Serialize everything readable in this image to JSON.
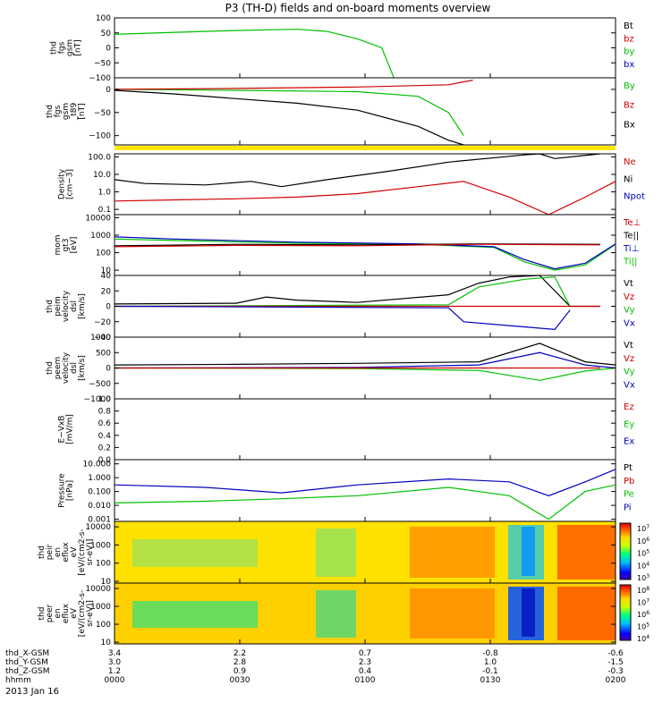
{
  "title": "P3 (TH-D) fields and on-board moments overview",
  "date_label": "2013 Jan 16",
  "time_axis": {
    "row_labels": [
      "thd_X-GSM",
      "thd_Y-GSM",
      "thd_Z-GSM",
      "hhmm"
    ],
    "columns": [
      {
        "time": "0000",
        "x_gsm": "3.4",
        "y_gsm": "3.0",
        "z_gsm": "1.2"
      },
      {
        "time": "0030",
        "x_gsm": "2.2",
        "y_gsm": "2.8",
        "z_gsm": "0.9"
      },
      {
        "time": "0100",
        "x_gsm": "0.7",
        "y_gsm": "2.3",
        "z_gsm": "0.4"
      },
      {
        "time": "0130",
        "x_gsm": "-0.8",
        "y_gsm": "1.0",
        "z_gsm": "-0.1"
      },
      {
        "time": "0200",
        "x_gsm": "-0.6",
        "y_gsm": "-1.5",
        "z_gsm": "-0.3"
      }
    ]
  },
  "chart_data": [
    {
      "type": "line",
      "ylabel": [
        "thd",
        "fgs",
        "gsm",
        "[nT]"
      ],
      "ylim": [
        -100,
        100
      ],
      "yticks": [
        "100",
        "50",
        "0",
        "−50",
        "−100"
      ],
      "yticks_values": [
        100,
        50,
        0,
        -50,
        -100
      ],
      "legend": [
        {
          "name": "Bt",
          "color": "#000000"
        },
        {
          "name": "bz",
          "color": "#d00000"
        },
        {
          "name": "by",
          "color": "#00c000"
        },
        {
          "name": "bx",
          "color": "#0000c0"
        }
      ],
      "series": [
        {
          "name": "by",
          "color": "#00c000",
          "x": [
            0,
            20,
            40,
            60,
            70,
            80,
            88,
            92
          ],
          "y": [
            45,
            52,
            58,
            62,
            55,
            30,
            0,
            -100
          ]
        }
      ]
    },
    {
      "type": "line",
      "ylabel": [
        "thd",
        "fgs",
        "gsm",
        "_t89",
        "[nT]"
      ],
      "ylim": [
        -120,
        25
      ],
      "yticks": [
        "0",
        "−50",
        "−100"
      ],
      "yticks_values": [
        0,
        -50,
        -100
      ],
      "legend": [
        {
          "name": "By",
          "color": "#00c000"
        },
        {
          "name": "Bz",
          "color": "#d00000"
        },
        {
          "name": "Bx",
          "color": "#000000"
        }
      ],
      "series": [
        {
          "name": "Bx",
          "color": "#000000",
          "x": [
            0,
            20,
            40,
            60,
            80,
            100,
            110,
            115
          ],
          "y": [
            -2,
            -10,
            -20,
            -30,
            -45,
            -80,
            -110,
            -120
          ]
        },
        {
          "name": "By",
          "color": "#00c000",
          "x": [
            0,
            40,
            80,
            100,
            110,
            115
          ],
          "y": [
            0,
            -2,
            -5,
            -15,
            -50,
            -100
          ]
        },
        {
          "name": "Bz",
          "color": "#d00000",
          "x": [
            0,
            40,
            80,
            110,
            118
          ],
          "y": [
            0,
            2,
            5,
            10,
            20
          ]
        }
      ]
    },
    {
      "type": "line",
      "ylabel": [
        "Density",
        "[cm−3]"
      ],
      "yscale": "log",
      "ylim": [
        0.05,
        150
      ],
      "yticks": [
        "100.0",
        "10.0",
        "1.0",
        "0.1"
      ],
      "yticks_values": [
        100,
        10,
        1,
        0.1
      ],
      "legend": [
        {
          "name": "Ne",
          "color": "#d00000"
        },
        {
          "name": "Ni",
          "color": "#000000"
        },
        {
          "name": "Npot",
          "color": "#0000c0"
        }
      ],
      "series": [
        {
          "name": "Ni",
          "color": "#000000",
          "x": [
            0,
            10,
            30,
            45,
            55,
            70,
            90,
            110,
            135,
            140,
            145,
            160
          ],
          "y": [
            5,
            3,
            2.5,
            4,
            2,
            5,
            15,
            50,
            130,
            150,
            80,
            150
          ]
        },
        {
          "name": "Ne",
          "color": "#d00000",
          "x": [
            0,
            20,
            40,
            60,
            80,
            100,
            115,
            130,
            143,
            155,
            165
          ],
          "y": [
            0.3,
            0.35,
            0.4,
            0.5,
            0.8,
            2,
            4,
            0.5,
            0.05,
            0.5,
            4
          ]
        }
      ]
    },
    {
      "type": "line",
      "ylabel": [
        "mom",
        "gt3",
        "[eV]"
      ],
      "yscale": "log",
      "ylim": [
        5,
        15000
      ],
      "yticks": [
        "10000",
        "1000",
        "100",
        "10"
      ],
      "yticks_values": [
        10000,
        1000,
        100,
        10
      ],
      "legend": [
        {
          "name": "Te⊥",
          "color": "#d00000"
        },
        {
          "name": "Te||",
          "color": "#000000"
        },
        {
          "name": "Ti⊥",
          "color": "#0000c0"
        },
        {
          "name": "Ti||",
          "color": "#00c000"
        }
      ],
      "series": [
        {
          "name": "Ti||",
          "color": "#00c000",
          "x": [
            0,
            20,
            60,
            100,
            125,
            135,
            145,
            155,
            165
          ],
          "y": [
            600,
            500,
            350,
            300,
            200,
            30,
            10,
            20,
            300
          ]
        },
        {
          "name": "Ti⊥",
          "color": "#0000c0",
          "x": [
            0,
            20,
            60,
            100,
            125,
            135,
            145,
            155,
            165
          ],
          "y": [
            800,
            600,
            400,
            320,
            220,
            40,
            12,
            25,
            320
          ]
        },
        {
          "name": "Te||",
          "color": "#000000",
          "x": [
            0,
            40,
            80,
            120,
            160
          ],
          "y": [
            250,
            300,
            280,
            320,
            300
          ]
        },
        {
          "name": "Te⊥",
          "color": "#d00000",
          "x": [
            0,
            40,
            80,
            120,
            160
          ],
          "y": [
            220,
            260,
            250,
            300,
            280
          ]
        }
      ]
    },
    {
      "type": "line",
      "ylabel": [
        "thd",
        "peim",
        "velocity",
        "dsl",
        "[km/s]"
      ],
      "ylim": [
        -40,
        40
      ],
      "yticks": [
        "40",
        "20",
        "0",
        "−20",
        "−40"
      ],
      "yticks_values": [
        40,
        20,
        0,
        -20,
        -40
      ],
      "legend": [
        {
          "name": "Vt",
          "color": "#000000"
        },
        {
          "name": "Vz",
          "color": "#d00000"
        },
        {
          "name": "Vy",
          "color": "#00c000"
        },
        {
          "name": "Vx",
          "color": "#0000c0"
        }
      ],
      "series": [
        {
          "name": "Vt",
          "color": "#000000",
          "x": [
            0,
            40,
            50,
            60,
            80,
            110,
            120,
            130,
            140,
            150,
            160
          ],
          "y": [
            3,
            4,
            12,
            8,
            5,
            15,
            30,
            38,
            40,
            0,
            0
          ]
        },
        {
          "name": "Vy",
          "color": "#00c000",
          "x": [
            0,
            110,
            120,
            135,
            145,
            150
          ],
          "y": [
            0,
            2,
            25,
            35,
            38,
            0
          ]
        },
        {
          "name": "Vz",
          "color": "#d00000",
          "x": [
            0,
            160
          ],
          "y": [
            0,
            0
          ]
        },
        {
          "name": "Vx",
          "color": "#0000c0",
          "x": [
            0,
            110,
            115,
            130,
            145,
            150
          ],
          "y": [
            0,
            -2,
            -20,
            -25,
            -30,
            -5
          ]
        }
      ]
    },
    {
      "type": "line",
      "ylabel": [
        "thd",
        "peem",
        "velocity",
        "dsl",
        "[km/s]"
      ],
      "ylim": [
        -1000,
        1000
      ],
      "yticks": [
        "1000",
        "500",
        "0",
        "−500",
        "−1000"
      ],
      "yticks_values": [
        1000,
        500,
        0,
        -500,
        -1000
      ],
      "legend": [
        {
          "name": "Vt",
          "color": "#000000"
        },
        {
          "name": "Vz",
          "color": "#d00000"
        },
        {
          "name": "Vy",
          "color": "#00c000"
        },
        {
          "name": "Vx",
          "color": "#0000c0"
        }
      ],
      "series": [
        {
          "name": "Vt",
          "color": "#000000",
          "x": [
            0,
            40,
            80,
            120,
            140,
            155,
            165
          ],
          "y": [
            100,
            120,
            150,
            200,
            800,
            200,
            100
          ]
        },
        {
          "name": "Vx",
          "color": "#0000c0",
          "x": [
            0,
            80,
            120,
            140,
            155,
            165
          ],
          "y": [
            0,
            20,
            100,
            500,
            100,
            0
          ]
        },
        {
          "name": "Vy",
          "color": "#00c000",
          "x": [
            0,
            80,
            120,
            140,
            155,
            165
          ],
          "y": [
            0,
            -20,
            -80,
            -400,
            -100,
            0
          ]
        },
        {
          "name": "Vz",
          "color": "#d00000",
          "x": [
            0,
            160
          ],
          "y": [
            0,
            0
          ]
        }
      ]
    },
    {
      "type": "line",
      "ylabel": [
        "E−VxB",
        "[mV/m]"
      ],
      "ylim": [
        0,
        1
      ],
      "yticks": [
        "1.0",
        "0.8",
        "0.6",
        "0.4",
        "0.2",
        "0.0"
      ],
      "yticks_values": [
        1,
        0.8,
        0.6,
        0.4,
        0.2,
        0
      ],
      "legend": [
        {
          "name": "Ez",
          "color": "#d00000"
        },
        {
          "name": "Ey",
          "color": "#00c000"
        },
        {
          "name": "Ex",
          "color": "#0000c0"
        }
      ],
      "series": []
    },
    {
      "type": "line",
      "ylabel": [
        "Pressure",
        "[nPa]"
      ],
      "yscale": "log",
      "ylim": [
        0.0007,
        20
      ],
      "yticks": [
        "10.000",
        "1.000",
        "0.100",
        "0.010",
        "0.001"
      ],
      "yticks_values": [
        10,
        1,
        0.1,
        0.01,
        0.001
      ],
      "legend": [
        {
          "name": "Pt",
          "color": "#000000"
        },
        {
          "name": "Pb",
          "color": "#d00000"
        },
        {
          "name": "Pe",
          "color": "#00c000"
        },
        {
          "name": "Pi",
          "color": "#0000c0"
        }
      ],
      "series": [
        {
          "name": "Pi",
          "color": "#0000c0",
          "x": [
            0,
            30,
            55,
            80,
            110,
            130,
            143,
            155,
            165
          ],
          "y": [
            0.3,
            0.2,
            0.08,
            0.3,
            0.8,
            0.5,
            0.05,
            0.5,
            4
          ]
        },
        {
          "name": "Pe",
          "color": "#00c000",
          "x": [
            0,
            30,
            55,
            80,
            110,
            130,
            143,
            155,
            165
          ],
          "y": [
            0.015,
            0.02,
            0.03,
            0.05,
            0.2,
            0.05,
            0.001,
            0.1,
            0.3
          ]
        }
      ]
    },
    {
      "type": "heatmap",
      "ylabel": [
        "thd",
        "peir",
        "en",
        "eflux",
        "eV",
        "[eV/(cm2-s-",
        "sr-eV)]"
      ],
      "yscale": "log",
      "ylim": [
        8,
        20000
      ],
      "yticks": [
        "10000",
        "1000",
        "100",
        "10"
      ],
      "yticks_values": [
        10000,
        1000,
        100,
        10
      ],
      "colorbar": {
        "min_exp": 3,
        "max_exp": 7,
        "labels": [
          "10^7",
          "10^6",
          "10^5",
          "10^4",
          "10^3"
        ]
      }
    },
    {
      "type": "heatmap",
      "ylabel": [
        "thd",
        "peer",
        "en",
        "eflux",
        "eV",
        "[eV/(cm2-s-",
        "sr-eV)]"
      ],
      "yscale": "log",
      "ylim": [
        8,
        20000
      ],
      "yticks": [
        "10000",
        "1000",
        "100",
        "10"
      ],
      "yticks_values": [
        10000,
        1000,
        100,
        10
      ],
      "colorbar": {
        "min_exp": 4,
        "max_exp": 8,
        "labels": [
          "10^8",
          "10^7",
          "10^6",
          "10^5",
          "10^4"
        ]
      }
    }
  ],
  "colors": {
    "black": "#000000",
    "red": "#d00000",
    "green": "#00c000",
    "blue": "#0000c0",
    "yellow": "#ffe600"
  }
}
